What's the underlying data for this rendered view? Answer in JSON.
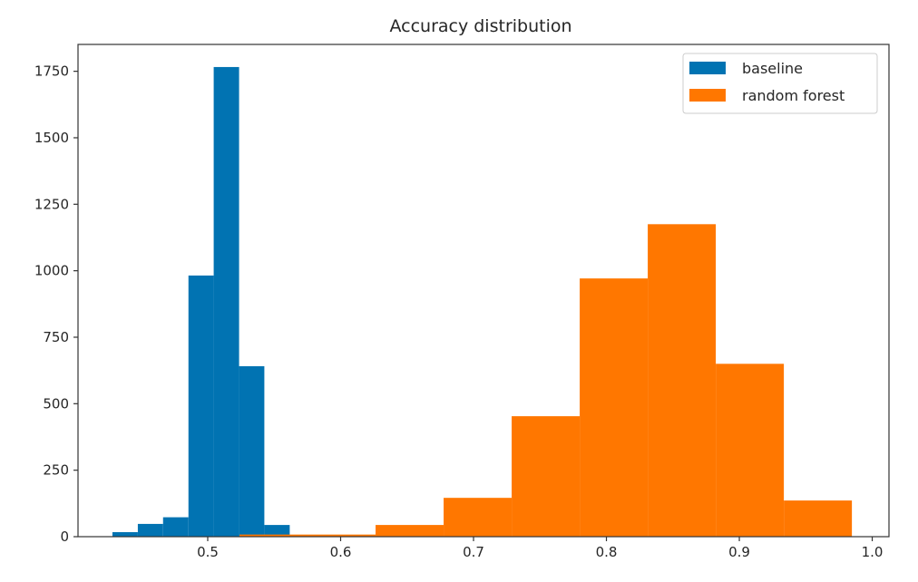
{
  "chart_data": {
    "type": "histogram",
    "title": "Accuracy distribution",
    "xlabel": "",
    "ylabel": "",
    "xlim": [
      0.4024,
      1.0126
    ],
    "ylim": [
      0,
      1851
    ],
    "xticks": [
      0.5,
      0.6,
      0.7,
      0.8,
      0.9,
      1.0
    ],
    "xtick_labels": [
      "0.5",
      "0.6",
      "0.7",
      "0.8",
      "0.9",
      "1.0"
    ],
    "yticks": [
      0,
      250,
      500,
      750,
      1000,
      1250,
      1500,
      1750
    ],
    "ytick_labels": [
      "0",
      "250",
      "500",
      "750",
      "1000",
      "1250",
      "1500",
      "1750"
    ],
    "grid": false,
    "legend_position": "top-right",
    "series": [
      {
        "name": "baseline",
        "color": "#0173b2",
        "bin_edges": [
          0.4283,
          0.4474,
          0.4664,
          0.4855,
          0.5045,
          0.5236,
          0.5426,
          0.5617
        ],
        "counts": [
          17,
          48,
          73,
          982,
          1766,
          641,
          44
        ]
      },
      {
        "name": "random forest",
        "color": "#ff7700",
        "bin_edges": [
          0.5239,
          0.5751,
          0.6263,
          0.6775,
          0.7287,
          0.7799,
          0.8311,
          0.8823,
          0.9335,
          0.9847
        ],
        "counts": [
          8,
          8,
          44,
          146,
          453,
          971,
          1175,
          650,
          136
        ]
      }
    ]
  }
}
